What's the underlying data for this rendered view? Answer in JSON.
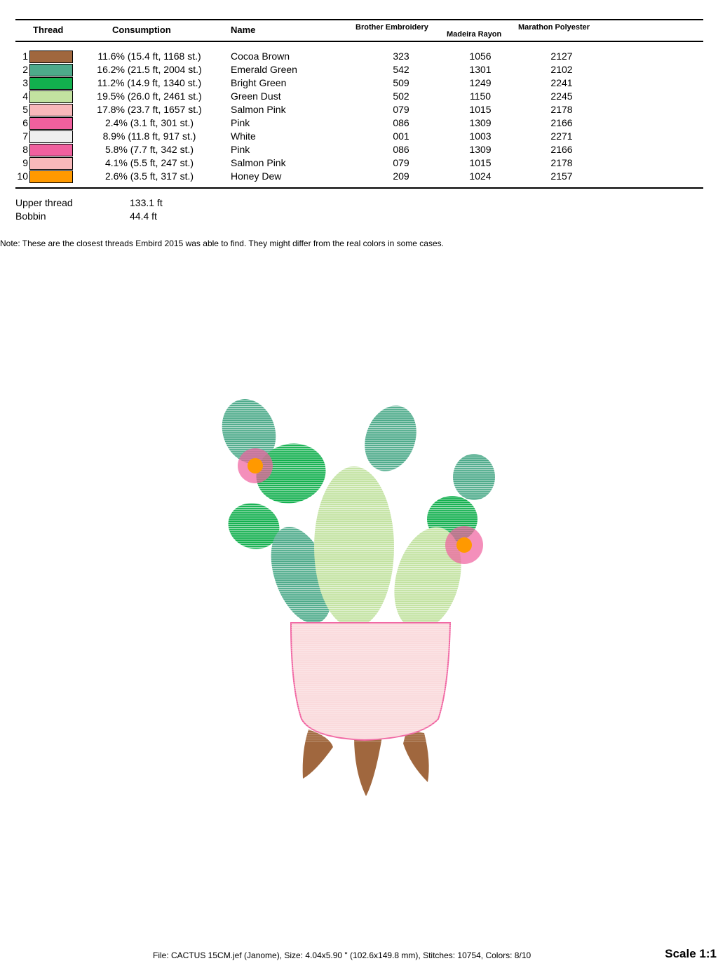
{
  "headers": {
    "thread": "Thread",
    "consumption": "Consumption",
    "name": "Name",
    "brother": "Brother Embroidery",
    "madeira": "Madeira Rayon",
    "marathon": "Marathon Polyester"
  },
  "rows": [
    {
      "n": "1",
      "color": "#A0673E",
      "consumption": "11.6% (15.4 ft, 1168 st.)",
      "name": "Cocoa Brown",
      "brother": "323",
      "madeira": "1056",
      "marathon": "2127"
    },
    {
      "n": "2",
      "color": "#4DAA8A",
      "consumption": "16.2% (21.5 ft, 2004 st.)",
      "name": "Emerald Green",
      "brother": "542",
      "madeira": "1301",
      "marathon": "2102"
    },
    {
      "n": "3",
      "color": "#12B04E",
      "consumption": "11.2% (14.9 ft, 1340 st.)",
      "name": "Bright Green",
      "brother": "509",
      "madeira": "1249",
      "marathon": "2241"
    },
    {
      "n": "4",
      "color": "#C2E2A0",
      "consumption": "19.5% (26.0 ft, 2461 st.)",
      "name": "Green Dust",
      "brother": "502",
      "madeira": "1150",
      "marathon": "2245"
    },
    {
      "n": "5",
      "color": "#F8B8BA",
      "consumption": "17.8% (23.7 ft, 1657 st.)",
      "name": "Salmon Pink",
      "brother": "079",
      "madeira": "1015",
      "marathon": "2178"
    },
    {
      "n": "6",
      "color": "#F0609E",
      "consumption": "2.4% (3.1 ft, 301 st.)",
      "name": "Pink",
      "brother": "086",
      "madeira": "1309",
      "marathon": "2166"
    },
    {
      "n": "7",
      "color": "#EEEEEE",
      "consumption": "8.9% (11.8 ft, 917 st.)",
      "name": "White",
      "brother": "001",
      "madeira": "1003",
      "marathon": "2271"
    },
    {
      "n": "8",
      "color": "#F0609E",
      "consumption": "5.8% (7.7 ft, 342 st.)",
      "name": "Pink",
      "brother": "086",
      "madeira": "1309",
      "marathon": "2166"
    },
    {
      "n": "9",
      "color": "#F8B8BA",
      "consumption": "4.1% (5.5 ft, 247 st.)",
      "name": "Salmon Pink",
      "brother": "079",
      "madeira": "1015",
      "marathon": "2178"
    },
    {
      "n": "10",
      "color": "#FF9900",
      "consumption": "2.6% (3.5 ft, 317 st.)",
      "name": "Honey Dew",
      "brother": "209",
      "madeira": "1024",
      "marathon": "2157"
    }
  ],
  "summary": {
    "upper_label": "Upper thread",
    "upper_value": "133.1 ft",
    "bobbin_label": "Bobbin",
    "bobbin_value": "44.4 ft"
  },
  "note": "Note: These are the closest threads Embird 2015 was able to find. They might differ from the real colors in some cases.",
  "footer": "File: CACTUS 15CM.jef (Janome), Size: 4.04x5.90 \" (102.6x149.8 mm), Stitches: 10754, Colors: 8/10",
  "scale": "Scale 1:1"
}
